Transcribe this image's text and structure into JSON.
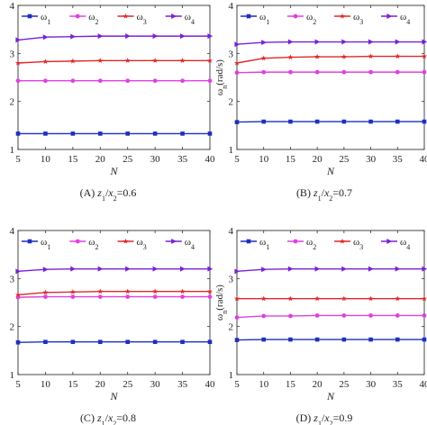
{
  "figure": {
    "legend_labels": [
      "ω1",
      "ω2",
      "ω3",
      "ω4"
    ],
    "series_colors": [
      "#1f2fbf",
      "#e040e0",
      "#e02828",
      "#7a20d6"
    ],
    "series_markers": [
      "square",
      "circle",
      "star",
      "triangle-right"
    ]
  },
  "chart_data": [
    {
      "type": "line",
      "title": "",
      "caption_letter": "(A) z",
      "caption_ratio": "1/x2=0.6",
      "xlabel": "N",
      "ylabel": "ωn(rad/s)",
      "xlim": [
        5,
        40
      ],
      "ylim": [
        1,
        4
      ],
      "xticks": [
        5,
        10,
        15,
        20,
        25,
        30,
        35,
        40
      ],
      "yticks": [
        1,
        2,
        3,
        4
      ],
      "x": [
        5,
        10,
        15,
        20,
        25,
        30,
        35,
        40
      ],
      "series": [
        {
          "name": "ω1",
          "values": [
            1.33,
            1.33,
            1.33,
            1.33,
            1.33,
            1.33,
            1.33,
            1.33
          ]
        },
        {
          "name": "ω2",
          "values": [
            2.43,
            2.43,
            2.43,
            2.43,
            2.43,
            2.43,
            2.43,
            2.43
          ]
        },
        {
          "name": "ω3",
          "values": [
            2.8,
            2.83,
            2.84,
            2.85,
            2.85,
            2.85,
            2.85,
            2.85
          ]
        },
        {
          "name": "ω4",
          "values": [
            3.28,
            3.34,
            3.35,
            3.36,
            3.36,
            3.36,
            3.36,
            3.36
          ]
        }
      ]
    },
    {
      "type": "line",
      "title": "",
      "caption_letter": "(B) z",
      "caption_ratio": "1/x2=0.7",
      "xlabel": "N",
      "ylabel": "ωn(rad/s)",
      "xlim": [
        5,
        40
      ],
      "ylim": [
        1,
        4
      ],
      "xticks": [
        5,
        10,
        15,
        20,
        25,
        30,
        35,
        40
      ],
      "yticks": [
        1,
        2,
        3,
        4
      ],
      "x": [
        5,
        10,
        15,
        20,
        25,
        30,
        35,
        40
      ],
      "series": [
        {
          "name": "ω1",
          "values": [
            1.57,
            1.58,
            1.58,
            1.58,
            1.58,
            1.58,
            1.58,
            1.58
          ]
        },
        {
          "name": "ω2",
          "values": [
            2.6,
            2.61,
            2.61,
            2.61,
            2.61,
            2.61,
            2.61,
            2.61
          ]
        },
        {
          "name": "ω3",
          "values": [
            2.8,
            2.9,
            2.92,
            2.93,
            2.93,
            2.94,
            2.94,
            2.94
          ]
        },
        {
          "name": "ω4",
          "values": [
            3.19,
            3.23,
            3.24,
            3.24,
            3.24,
            3.24,
            3.24,
            3.24
          ]
        }
      ]
    },
    {
      "type": "line",
      "title": "",
      "caption_letter": "(C) z",
      "caption_ratio": "1/x2=0.8",
      "xlabel": "N",
      "ylabel": "ωn(rad/s)",
      "xlim": [
        5,
        40
      ],
      "ylim": [
        1,
        4
      ],
      "xticks": [
        5,
        10,
        15,
        20,
        25,
        30,
        35,
        40
      ],
      "yticks": [
        1,
        2,
        3,
        4
      ],
      "x": [
        5,
        10,
        15,
        20,
        25,
        30,
        35,
        40
      ],
      "series": [
        {
          "name": "ω1",
          "values": [
            1.67,
            1.68,
            1.68,
            1.68,
            1.68,
            1.68,
            1.68,
            1.68
          ]
        },
        {
          "name": "ω2",
          "values": [
            2.61,
            2.62,
            2.62,
            2.62,
            2.62,
            2.62,
            2.62,
            2.62
          ]
        },
        {
          "name": "ω3",
          "values": [
            2.66,
            2.71,
            2.72,
            2.73,
            2.73,
            2.73,
            2.73,
            2.73
          ]
        },
        {
          "name": "ω4",
          "values": [
            3.15,
            3.19,
            3.2,
            3.2,
            3.2,
            3.2,
            3.2,
            3.2
          ]
        }
      ]
    },
    {
      "type": "line",
      "title": "",
      "caption_letter": "(D) z",
      "caption_ratio": "1/x2=0.9",
      "xlabel": "N",
      "ylabel": "ωn(rad/s)",
      "xlim": [
        5,
        40
      ],
      "ylim": [
        1,
        4
      ],
      "xticks": [
        5,
        10,
        15,
        20,
        25,
        30,
        35,
        40
      ],
      "yticks": [
        1,
        2,
        3,
        4
      ],
      "x": [
        5,
        10,
        15,
        20,
        25,
        30,
        35,
        40
      ],
      "series": [
        {
          "name": "ω1",
          "values": [
            1.72,
            1.73,
            1.73,
            1.73,
            1.73,
            1.73,
            1.73,
            1.73
          ]
        },
        {
          "name": "ω2",
          "values": [
            2.19,
            2.22,
            2.22,
            2.23,
            2.23,
            2.23,
            2.23,
            2.23
          ]
        },
        {
          "name": "ω3",
          "values": [
            2.58,
            2.58,
            2.58,
            2.58,
            2.58,
            2.58,
            2.58,
            2.58
          ]
        },
        {
          "name": "ω4",
          "values": [
            3.15,
            3.19,
            3.2,
            3.2,
            3.2,
            3.2,
            3.2,
            3.2
          ]
        }
      ]
    }
  ]
}
